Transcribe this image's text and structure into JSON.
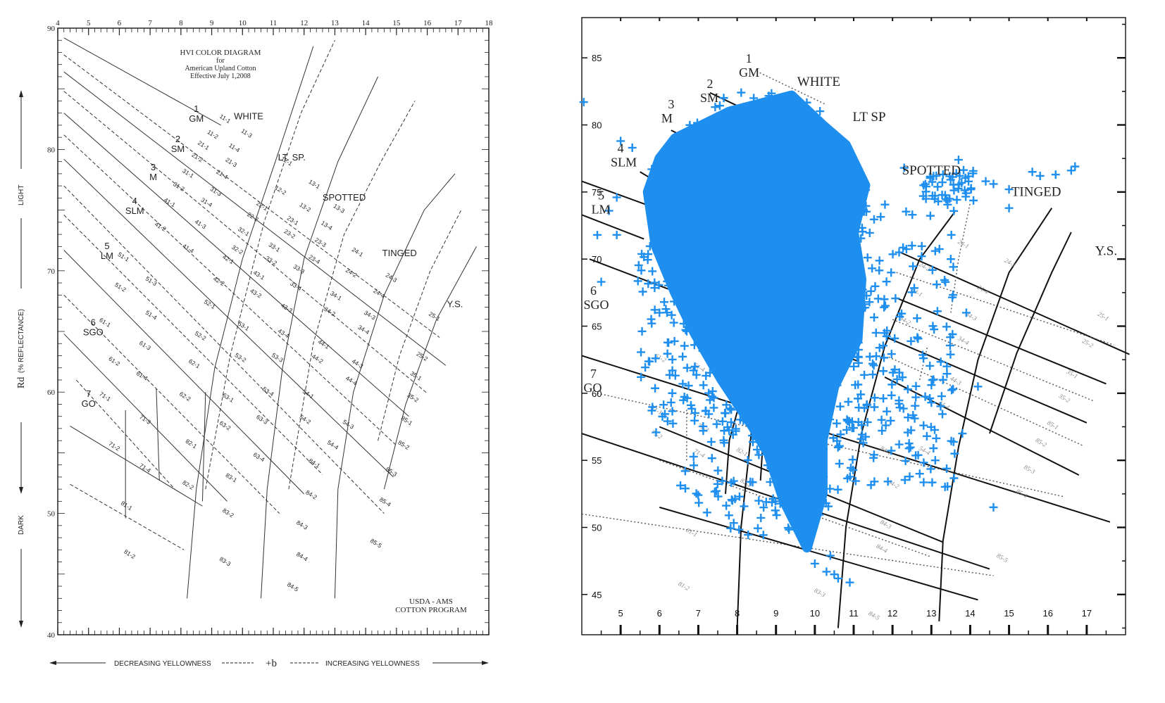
{
  "chart_data": [
    {
      "type": "line",
      "panel": "usda-reference",
      "title_lines": [
        "HVI COLOR DIAGRAM",
        "for",
        "American Upland Cotton",
        "Effective July 1,2008"
      ],
      "xlim": [
        4,
        18
      ],
      "ylim": [
        40,
        90
      ],
      "x_ticks": [
        "4",
        "5",
        "6",
        "7",
        "8",
        "9",
        "10",
        "11",
        "12",
        "13",
        "14",
        "15",
        "16",
        "17",
        "18"
      ],
      "y_ticks": [
        "40",
        "50",
        "60",
        "70",
        "80",
        "90"
      ],
      "ylabel": "Rd",
      "ylabel_sub": "(% REFLECTANCE)",
      "y_side_labels": [
        "LIGHT",
        "DARK"
      ],
      "xlabel": "+b",
      "x_side_labels": [
        "DECREASING YELLOWNESS",
        "INCREASING YELLOWNESS"
      ],
      "footer": [
        "USDA - AMS",
        "COTTON PROGRAM"
      ],
      "grade_labels": [
        {
          "num": "1",
          "name": "GM",
          "x": 8.5,
          "y": 82.4
        },
        {
          "num": "2",
          "name": "SM",
          "x": 7.9,
          "y": 79.9
        },
        {
          "num": "3",
          "name": "M",
          "x": 7.1,
          "y": 77.6
        },
        {
          "num": "4",
          "name": "SLM",
          "x": 6.5,
          "y": 74.8
        },
        {
          "num": "5",
          "name": "LM",
          "x": 5.6,
          "y": 71.1
        },
        {
          "num": "6",
          "name": "SGO",
          "x": 5.15,
          "y": 64.8
        },
        {
          "num": "7",
          "name": "GO",
          "x": 5.0,
          "y": 58.9
        }
      ],
      "color_labels": [
        {
          "text": "WHITE",
          "x": 10.2,
          "y": 82.5
        },
        {
          "text": "LT. SP.",
          "x": 11.6,
          "y": 79.1
        },
        {
          "text": "SPOTTED",
          "x": 13.3,
          "y": 75.8
        },
        {
          "text": "TINGED",
          "x": 15.1,
          "y": 71.2
        },
        {
          "text": "Y.S.",
          "x": 16.9,
          "y": 67.0
        }
      ],
      "cells": [
        {
          "t": "11-1",
          "x": 9.4,
          "y": 82.4
        },
        {
          "t": "11-3",
          "x": 10.1,
          "y": 81.2
        },
        {
          "t": "11-2",
          "x": 9.0,
          "y": 81.1
        },
        {
          "t": "11-4",
          "x": 9.7,
          "y": 80.0
        },
        {
          "t": "21-1",
          "x": 8.7,
          "y": 80.2
        },
        {
          "t": "21-3",
          "x": 9.6,
          "y": 78.8
        },
        {
          "t": "21-2",
          "x": 8.5,
          "y": 79.2
        },
        {
          "t": "21-4",
          "x": 9.3,
          "y": 77.8
        },
        {
          "t": "31-1",
          "x": 8.2,
          "y": 77.9
        },
        {
          "t": "31-3",
          "x": 9.1,
          "y": 76.4
        },
        {
          "t": "31-2",
          "x": 7.9,
          "y": 76.8
        },
        {
          "t": "31-4",
          "x": 8.8,
          "y": 75.5
        },
        {
          "t": "41-1",
          "x": 7.6,
          "y": 75.5
        },
        {
          "t": "41-3",
          "x": 8.6,
          "y": 73.7
        },
        {
          "t": "41-2",
          "x": 7.3,
          "y": 73.5
        },
        {
          "t": "41-4",
          "x": 8.2,
          "y": 71.7
        },
        {
          "t": "51-1",
          "x": 6.1,
          "y": 71.0
        },
        {
          "t": "51-3",
          "x": 7.0,
          "y": 69.0
        },
        {
          "t": "51-2",
          "x": 6.0,
          "y": 68.5
        },
        {
          "t": "51-4",
          "x": 7.0,
          "y": 66.2
        },
        {
          "t": "61-1",
          "x": 5.5,
          "y": 65.6
        },
        {
          "t": "61-3",
          "x": 6.8,
          "y": 63.7
        },
        {
          "t": "61-2",
          "x": 5.8,
          "y": 62.4
        },
        {
          "t": "61-4",
          "x": 6.7,
          "y": 61.2
        },
        {
          "t": "71-1",
          "x": 5.5,
          "y": 59.5
        },
        {
          "t": "71-3",
          "x": 6.8,
          "y": 57.6
        },
        {
          "t": "71-2",
          "x": 5.8,
          "y": 55.4
        },
        {
          "t": "71-4",
          "x": 6.8,
          "y": 53.6
        },
        {
          "t": "81-1",
          "x": 6.2,
          "y": 50.5
        },
        {
          "t": "81-2",
          "x": 6.3,
          "y": 46.5
        },
        {
          "t": "12-1",
          "x": 11.4,
          "y": 78.9
        },
        {
          "t": "12-2",
          "x": 11.2,
          "y": 76.5
        },
        {
          "t": "22-1",
          "x": 10.6,
          "y": 75.2
        },
        {
          "t": "22-2",
          "x": 10.3,
          "y": 74.3
        },
        {
          "t": "32-1",
          "x": 10.0,
          "y": 73.1
        },
        {
          "t": "32-2",
          "x": 9.8,
          "y": 71.6
        },
        {
          "t": "42-1",
          "x": 9.5,
          "y": 70.8
        },
        {
          "t": "42-2",
          "x": 9.2,
          "y": 69.0
        },
        {
          "t": "52-1",
          "x": 8.9,
          "y": 67.1
        },
        {
          "t": "52-2",
          "x": 8.6,
          "y": 64.5
        },
        {
          "t": "62-1",
          "x": 8.4,
          "y": 62.2
        },
        {
          "t": "62-2",
          "x": 8.1,
          "y": 59.5
        },
        {
          "t": "82-1",
          "x": 8.3,
          "y": 55.6
        },
        {
          "t": "82-2",
          "x": 8.2,
          "y": 52.2
        },
        {
          "t": "13-1",
          "x": 12.3,
          "y": 77.0
        },
        {
          "t": "13-3",
          "x": 13.1,
          "y": 75.0
        },
        {
          "t": "13-2",
          "x": 12.0,
          "y": 75.1
        },
        {
          "t": "13-4",
          "x": 12.7,
          "y": 73.6
        },
        {
          "t": "23-1",
          "x": 11.6,
          "y": 74.0
        },
        {
          "t": "23-3",
          "x": 12.5,
          "y": 72.2
        },
        {
          "t": "23-2",
          "x": 11.5,
          "y": 72.9
        },
        {
          "t": "23-4",
          "x": 12.3,
          "y": 70.8
        },
        {
          "t": "33-1",
          "x": 11.0,
          "y": 71.8
        },
        {
          "t": "33-3",
          "x": 11.8,
          "y": 70.0
        },
        {
          "t": "33-2",
          "x": 10.9,
          "y": 70.7
        },
        {
          "t": "33-4",
          "x": 11.7,
          "y": 68.6
        },
        {
          "t": "43-1",
          "x": 10.5,
          "y": 69.5
        },
        {
          "t": "43-3",
          "x": 11.4,
          "y": 66.8
        },
        {
          "t": "43-2",
          "x": 10.4,
          "y": 68.0
        },
        {
          "t": "43-4",
          "x": 11.3,
          "y": 64.7
        },
        {
          "t": "53-1",
          "x": 10.0,
          "y": 65.3
        },
        {
          "t": "53-3",
          "x": 11.1,
          "y": 62.7
        },
        {
          "t": "53-2",
          "x": 9.9,
          "y": 62.7
        },
        {
          "t": "53-4",
          "x": 10.8,
          "y": 59.9
        },
        {
          "t": "63-1",
          "x": 9.5,
          "y": 59.4
        },
        {
          "t": "63-3",
          "x": 10.6,
          "y": 57.6
        },
        {
          "t": "63-2",
          "x": 9.4,
          "y": 57.1
        },
        {
          "t": "63-4",
          "x": 10.5,
          "y": 54.5
        },
        {
          "t": "83-1",
          "x": 9.6,
          "y": 52.8
        },
        {
          "t": "83-2",
          "x": 9.5,
          "y": 49.9
        },
        {
          "t": "83-3",
          "x": 9.4,
          "y": 45.9
        },
        {
          "t": "24-1",
          "x": 13.7,
          "y": 71.4
        },
        {
          "t": "24-3",
          "x": 14.8,
          "y": 69.3
        },
        {
          "t": "24-2",
          "x": 13.5,
          "y": 69.7
        },
        {
          "t": "24-4",
          "x": 14.4,
          "y": 68.0
        },
        {
          "t": "34-1",
          "x": 13.0,
          "y": 67.8
        },
        {
          "t": "34-3",
          "x": 14.1,
          "y": 66.2
        },
        {
          "t": "34-2",
          "x": 12.8,
          "y": 66.5
        },
        {
          "t": "34-4",
          "x": 13.9,
          "y": 65.0
        },
        {
          "t": "44-1",
          "x": 12.6,
          "y": 63.8
        },
        {
          "t": "44-3",
          "x": 13.7,
          "y": 62.2
        },
        {
          "t": "44-2",
          "x": 12.4,
          "y": 62.6
        },
        {
          "t": "44-4",
          "x": 13.5,
          "y": 60.8
        },
        {
          "t": "54-1",
          "x": 12.1,
          "y": 59.7
        },
        {
          "t": "54-3",
          "x": 13.4,
          "y": 57.2
        },
        {
          "t": "54-2",
          "x": 12.0,
          "y": 57.6
        },
        {
          "t": "54-4",
          "x": 12.9,
          "y": 55.5
        },
        {
          "t": "84-1",
          "x": 12.3,
          "y": 54.0
        },
        {
          "t": "84-2",
          "x": 12.2,
          "y": 51.4
        },
        {
          "t": "84-3",
          "x": 11.9,
          "y": 48.9
        },
        {
          "t": "84-4",
          "x": 11.9,
          "y": 46.3
        },
        {
          "t": "84-5",
          "x": 11.6,
          "y": 43.8
        },
        {
          "t": "25-1",
          "x": 16.2,
          "y": 66.1
        },
        {
          "t": "25-2",
          "x": 15.8,
          "y": 62.8
        },
        {
          "t": "35-1",
          "x": 15.6,
          "y": 61.2
        },
        {
          "t": "35-2",
          "x": 15.5,
          "y": 59.4
        },
        {
          "t": "85-1",
          "x": 15.3,
          "y": 57.5
        },
        {
          "t": "85-2",
          "x": 15.2,
          "y": 55.5
        },
        {
          "t": "85-3",
          "x": 14.8,
          "y": 53.3
        },
        {
          "t": "85-4",
          "x": 14.6,
          "y": 50.8
        },
        {
          "t": "85-5",
          "x": 14.3,
          "y": 47.4
        }
      ]
    },
    {
      "type": "scatter",
      "panel": "overlay-scatter",
      "xlim": [
        4,
        18
      ],
      "ylim": [
        42,
        88
      ],
      "x_ticks": [
        "5",
        "6",
        "7",
        "8",
        "9",
        "10",
        "11",
        "12",
        "13",
        "14",
        "15",
        "16",
        "17"
      ],
      "y_ticks": [
        "45",
        "50",
        "55",
        "60",
        "65",
        "70",
        "75",
        "80",
        "85"
      ],
      "marker": "+",
      "marker_color": "#1E8FEF",
      "cluster": {
        "x_range": [
          6.5,
          12.5
        ],
        "y_range": [
          47,
          82
        ],
        "center": [
          9.5,
          68
        ]
      },
      "outlier_points": [
        [
          4.05,
          81.7
        ],
        [
          5.0,
          78.8
        ],
        [
          4.9,
          74.6
        ],
        [
          4.7,
          73.6
        ],
        [
          4.9,
          71.8
        ],
        [
          4.4,
          71.8
        ],
        [
          4.5,
          68.3
        ],
        [
          5.3,
          78.3
        ],
        [
          6.1,
          77.8
        ],
        [
          6.7,
          79.2
        ],
        [
          5.8,
          76.7
        ],
        [
          12.3,
          76.8
        ],
        [
          12.8,
          75.5
        ],
        [
          13.3,
          76.3
        ],
        [
          13.7,
          77.4
        ],
        [
          14.4,
          75.8
        ],
        [
          14.6,
          75.6
        ],
        [
          15.0,
          75.2
        ],
        [
          15.0,
          73.8
        ],
        [
          15.6,
          76.5
        ],
        [
          15.8,
          76.2
        ],
        [
          16.2,
          76.3
        ],
        [
          16.6,
          76.6
        ],
        [
          16.7,
          76.9
        ],
        [
          12.5,
          71.0
        ],
        [
          13.1,
          70.6
        ],
        [
          13.5,
          70.0
        ],
        [
          13.9,
          66.0
        ],
        [
          13.4,
          62.0
        ],
        [
          13.3,
          61.0
        ],
        [
          14.2,
          60.5
        ],
        [
          12.8,
          57.6
        ],
        [
          13.8,
          57.0
        ],
        [
          13.6,
          55.5
        ],
        [
          14.6,
          51.5
        ],
        [
          12.7,
          54.0
        ],
        [
          13.1,
          55.0
        ],
        [
          10.0,
          47.3
        ],
        [
          10.3,
          46.7
        ],
        [
          10.5,
          46.5
        ],
        [
          10.6,
          46.2
        ],
        [
          10.9,
          45.9
        ],
        [
          10.4,
          47.9
        ],
        [
          6.6,
          60.7
        ],
        [
          6.9,
          63.6
        ],
        [
          6.0,
          66.0
        ],
        [
          5.8,
          65.2
        ],
        [
          5.9,
          62.6
        ],
        [
          12.4,
          58.2
        ],
        [
          12.6,
          59.7
        ],
        [
          13.0,
          59.3
        ]
      ],
      "grade_labels": [
        {
          "num": "1",
          "name": "GM",
          "x": 8.3,
          "y": 83.7
        },
        {
          "num": "2",
          "name": "SM",
          "x": 7.3,
          "y": 81.8
        },
        {
          "num": "3",
          "name": "M",
          "x": 6.3,
          "y": 80.3
        },
        {
          "num": "4",
          "name": "SLM",
          "x": 5.0,
          "y": 77.0
        },
        {
          "num": "5",
          "name": "LM",
          "x": 4.5,
          "y": 73.5
        },
        {
          "num": "6",
          "name": "SGO",
          "x": 4.3,
          "y": 66.4
        },
        {
          "num": "7",
          "name": "GO",
          "x": 4.3,
          "y": 60.2
        }
      ],
      "color_labels": [
        {
          "text": "WHITE",
          "x": 10.1,
          "y": 82.9
        },
        {
          "text": "LT SP",
          "x": 11.4,
          "y": 80.3
        },
        {
          "text": "SPOTTED",
          "x": 13.0,
          "y": 76.3
        },
        {
          "text": "TINGED",
          "x": 15.7,
          "y": 74.7
        },
        {
          "text": "Y.S.",
          "x": 17.5,
          "y": 70.3
        }
      ],
      "cells": [
        {
          "t": "24-1",
          "x": 13.8,
          "y": 71.0
        },
        {
          "t": "24-3",
          "x": 15.0,
          "y": 69.6
        },
        {
          "t": "24-2",
          "x": 12.8,
          "y": 69.3
        },
        {
          "t": "24-4",
          "x": 14.3,
          "y": 67.6
        },
        {
          "t": "34-1",
          "x": 12.6,
          "y": 67.4
        },
        {
          "t": "34-3",
          "x": 14.0,
          "y": 65.6
        },
        {
          "t": "34-2",
          "x": 12.3,
          "y": 65.3
        },
        {
          "t": "34-4",
          "x": 13.8,
          "y": 63.8
        },
        {
          "t": "44-3",
          "x": 13.6,
          "y": 60.8
        },
        {
          "t": "44-4",
          "x": 13.3,
          "y": 59.0
        },
        {
          "t": "54-4",
          "x": 12.8,
          "y": 55.6
        },
        {
          "t": "25-1",
          "x": 17.4,
          "y": 65.6
        },
        {
          "t": "25-2",
          "x": 17.0,
          "y": 63.6
        },
        {
          "t": "35-1",
          "x": 16.6,
          "y": 61.3
        },
        {
          "t": "35-2",
          "x": 16.4,
          "y": 59.5
        },
        {
          "t": "85-1",
          "x": 16.1,
          "y": 57.5
        },
        {
          "t": "85-2",
          "x": 15.8,
          "y": 56.2
        },
        {
          "t": "85-3",
          "x": 15.5,
          "y": 54.2
        },
        {
          "t": "85-4",
          "x": 15.3,
          "y": 52.4
        },
        {
          "t": "85-5",
          "x": 14.8,
          "y": 47.6
        },
        {
          "t": "61-2",
          "x": 6.0,
          "y": 62.5
        },
        {
          "t": "61-4",
          "x": 7.0,
          "y": 61.8
        },
        {
          "t": "71-1",
          "x": 5.9,
          "y": 58.6
        },
        {
          "t": "71-3",
          "x": 7.1,
          "y": 57.3
        },
        {
          "t": "71-2",
          "x": 5.9,
          "y": 56.8
        },
        {
          "t": "71-4",
          "x": 7.0,
          "y": 55.4
        },
        {
          "t": "82-1",
          "x": 8.1,
          "y": 55.5
        },
        {
          "t": "82-2",
          "x": 8.2,
          "y": 53.2
        },
        {
          "t": "81-1",
          "x": 6.8,
          "y": 49.5
        },
        {
          "t": "81-2",
          "x": 6.6,
          "y": 45.5
        },
        {
          "t": "83-3",
          "x": 10.1,
          "y": 45.0
        },
        {
          "t": "84-1",
          "x": 11.8,
          "y": 55.6
        },
        {
          "t": "84-2",
          "x": 12.0,
          "y": 53.1
        },
        {
          "t": "84-3",
          "x": 11.8,
          "y": 50.1
        },
        {
          "t": "84-4",
          "x": 11.7,
          "y": 48.3
        },
        {
          "t": "84-5",
          "x": 11.5,
          "y": 43.3
        }
      ]
    }
  ]
}
